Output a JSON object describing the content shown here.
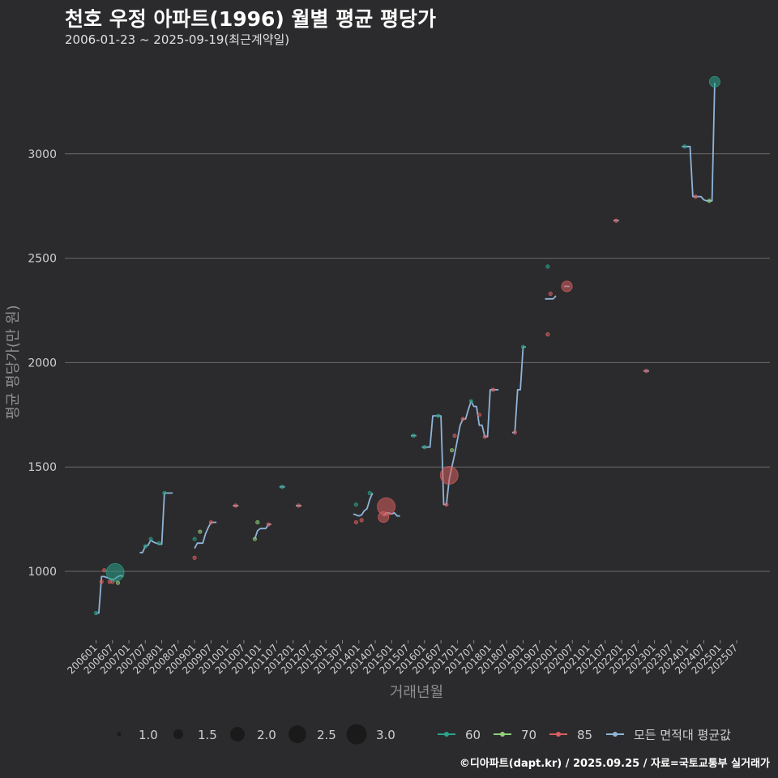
{
  "title": "천호 우정 아파트(1996) 월별 평균 평당가",
  "subtitle": "2006-01-23 ~ 2025-09-19(최근계약일)",
  "credit": "©디아파트(dapt.kr) / 2025.09.25 / 자료=국토교통부 실거래가",
  "colors": {
    "background": "#2b2b2d",
    "grid": "#6a6a6a",
    "avg_line": "#8fb4d8",
    "s60": "#2aa38a",
    "s70": "#8fd07a",
    "s85": "#d95f5f"
  },
  "chart_data": {
    "type": "line",
    "xlabel": "거래년월",
    "ylabel": "평균 평당가(만 원)",
    "ylim": [
      790,
      3380
    ],
    "y_ticks": [
      1000,
      1500,
      2000,
      2500,
      3000
    ],
    "x_ticks": [
      "200601",
      "200607",
      "200701",
      "200707",
      "200801",
      "200807",
      "200901",
      "200907",
      "201001",
      "201007",
      "201101",
      "201107",
      "201201",
      "201207",
      "201301",
      "201307",
      "201401",
      "201407",
      "201501",
      "201507",
      "201601",
      "201607",
      "201701",
      "201707",
      "201801",
      "201807",
      "201901",
      "201907",
      "202001",
      "202007",
      "202101",
      "202107",
      "202201",
      "202207",
      "202301",
      "202307",
      "202401",
      "202407",
      "202501",
      "202507"
    ],
    "grid": true,
    "size_legend": {
      "values": [
        "1.0",
        "1.5",
        "2.0",
        "2.5",
        "3.0"
      ]
    },
    "color_legend": [
      {
        "name": "60",
        "key": "s60"
      },
      {
        "name": "70",
        "key": "s70"
      },
      {
        "name": "85",
        "key": "s85"
      },
      {
        "name": "모든 면적대 평균값",
        "key": "avg_line"
      }
    ],
    "avg_series": [
      [
        [
          "200601",
          800
        ],
        [
          "200602",
          800
        ],
        [
          "200603",
          975
        ],
        [
          "200604",
          975
        ],
        [
          "200605",
          970
        ],
        [
          "200606",
          965
        ],
        [
          "200607",
          960
        ],
        [
          "200608",
          965
        ],
        [
          "200609",
          975
        ],
        [
          "200610",
          980
        ],
        [
          "200611",
          975
        ]
      ],
      [
        [
          "200705",
          1090
        ],
        [
          "200706",
          1090
        ],
        [
          "200707",
          1120
        ],
        [
          "200708",
          1125
        ],
        [
          "200709",
          1150
        ],
        [
          "200710",
          1140
        ],
        [
          "200711",
          1135
        ],
        [
          "200712",
          1130
        ],
        [
          "200801",
          1130
        ],
        [
          "200802",
          1375
        ],
        [
          "200803",
          1375
        ],
        [
          "200804",
          1375
        ],
        [
          "200805",
          1375
        ]
      ],
      [
        [
          "200901",
          1110
        ],
        [
          "200902",
          1135
        ],
        [
          "200903",
          1135
        ],
        [
          "200904",
          1135
        ],
        [
          "200905",
          1180
        ],
        [
          "200906",
          1210
        ],
        [
          "200907",
          1235
        ],
        [
          "200908",
          1235
        ],
        [
          "200909",
          1235
        ]
      ],
      [
        [
          "201003",
          1315
        ],
        [
          "201004",
          1315
        ],
        [
          "201005",
          1315
        ]
      ],
      [
        [
          "201011",
          1155
        ],
        [
          "201012",
          1195
        ],
        [
          "201101",
          1205
        ],
        [
          "201102",
          1205
        ],
        [
          "201103",
          1205
        ],
        [
          "201104",
          1225
        ],
        [
          "201105",
          1225
        ]
      ],
      [
        [
          "201108",
          1405
        ],
        [
          "201109",
          1405
        ],
        [
          "201110",
          1405
        ]
      ],
      [
        [
          "201202",
          1315
        ],
        [
          "201203",
          1315
        ],
        [
          "201204",
          1315
        ]
      ],
      [
        [
          "201311",
          1275
        ],
        [
          "201312",
          1270
        ],
        [
          "201401",
          1265
        ],
        [
          "201402",
          1270
        ],
        [
          "201403",
          1290
        ],
        [
          "201404",
          1300
        ],
        [
          "201405",
          1345
        ],
        [
          "201406",
          1375
        ]
      ],
      [
        [
          "201410",
          1265
        ],
        [
          "201411",
          1280
        ],
        [
          "201412",
          1280
        ],
        [
          "201501",
          1275
        ],
        [
          "201502",
          1280
        ],
        [
          "201503",
          1265
        ],
        [
          "201504",
          1265
        ]
      ],
      [
        [
          "201508",
          1650
        ],
        [
          "201509",
          1650
        ],
        [
          "201510",
          1650
        ]
      ],
      [
        [
          "201512",
          1595
        ],
        [
          "201601",
          1595
        ],
        [
          "201602",
          1595
        ],
        [
          "201603",
          1595
        ],
        [
          "201604",
          1745
        ],
        [
          "201605",
          1745
        ],
        [
          "201606",
          1745
        ],
        [
          "201607",
          1745
        ],
        [
          "201608",
          1320
        ],
        [
          "201609",
          1320
        ],
        [
          "201610",
          1440
        ],
        [
          "201611",
          1500
        ],
        [
          "201612",
          1560
        ],
        [
          "201701",
          1630
        ],
        [
          "201702",
          1700
        ],
        [
          "201703",
          1730
        ],
        [
          "201704",
          1730
        ],
        [
          "201705",
          1775
        ],
        [
          "201706",
          1815
        ],
        [
          "201707",
          1790
        ],
        [
          "201708",
          1790
        ],
        [
          "201709",
          1700
        ],
        [
          "201710",
          1700
        ],
        [
          "201711",
          1645
        ],
        [
          "201712",
          1645
        ],
        [
          "201801",
          1870
        ],
        [
          "201802",
          1870
        ],
        [
          "201803",
          1870
        ],
        [
          "201804",
          1870
        ]
      ],
      [
        [
          "201809",
          1665
        ],
        [
          "201810",
          1665
        ],
        [
          "201811",
          1870
        ],
        [
          "201812",
          1870
        ],
        [
          "201901",
          2075
        ],
        [
          "201902",
          2075
        ]
      ],
      [
        [
          "201909",
          2305
        ],
        [
          "201910",
          2305
        ],
        [
          "201911",
          2305
        ],
        [
          "201912",
          2305
        ],
        [
          "202001",
          2320
        ]
      ],
      [
        [
          "202004",
          2365
        ],
        [
          "202005",
          2365
        ],
        [
          "202006",
          2365
        ]
      ],
      [
        [
          "202110",
          2680
        ],
        [
          "202111",
          2680
        ],
        [
          "202112",
          2680
        ]
      ],
      [
        [
          "202209",
          1960
        ],
        [
          "202210",
          1960
        ],
        [
          "202211",
          1960
        ]
      ],
      [
        [
          "202311",
          3035
        ],
        [
          "202312",
          3035
        ],
        [
          "202401",
          3035
        ],
        [
          "202402",
          3035
        ],
        [
          "202403",
          2795
        ],
        [
          "202404",
          2795
        ],
        [
          "202405",
          2795
        ],
        [
          "202406",
          2795
        ],
        [
          "202407",
          2780
        ],
        [
          "202408",
          2775
        ],
        [
          "202409",
          2775
        ],
        [
          "202410",
          2775
        ],
        [
          "202411",
          3340
        ]
      ]
    ],
    "points": [
      {
        "x": "200601",
        "y": 800,
        "s": 1,
        "g": "s60"
      },
      {
        "x": "200603",
        "y": 950,
        "s": 1,
        "g": "s85"
      },
      {
        "x": "200604",
        "y": 1005,
        "s": 1,
        "g": "s85"
      },
      {
        "x": "200606",
        "y": 950,
        "s": 1,
        "g": "s85"
      },
      {
        "x": "200607",
        "y": 950,
        "s": 1,
        "g": "s85"
      },
      {
        "x": "200608",
        "y": 995,
        "s": 3,
        "g": "s60"
      },
      {
        "x": "200609",
        "y": 945,
        "s": 1,
        "g": "s70"
      },
      {
        "x": "200707",
        "y": 1120,
        "s": 1,
        "g": "s60"
      },
      {
        "x": "200709",
        "y": 1155,
        "s": 1,
        "g": "s60"
      },
      {
        "x": "200712",
        "y": 1135,
        "s": 1,
        "g": "s60"
      },
      {
        "x": "200802",
        "y": 1375,
        "s": 1,
        "g": "s60"
      },
      {
        "x": "200901",
        "y": 1155,
        "s": 1,
        "g": "s60"
      },
      {
        "x": "200901",
        "y": 1065,
        "s": 1,
        "g": "s85"
      },
      {
        "x": "200903",
        "y": 1190,
        "s": 1,
        "g": "s70"
      },
      {
        "x": "200907",
        "y": 1235,
        "s": 1,
        "g": "s85"
      },
      {
        "x": "201004",
        "y": 1315,
        "s": 1,
        "g": "s85"
      },
      {
        "x": "201011",
        "y": 1155,
        "s": 1,
        "g": "s70"
      },
      {
        "x": "201012",
        "y": 1235,
        "s": 1,
        "g": "s70"
      },
      {
        "x": "201104",
        "y": 1225,
        "s": 1,
        "g": "s85"
      },
      {
        "x": "201109",
        "y": 1405,
        "s": 1,
        "g": "s60"
      },
      {
        "x": "201203",
        "y": 1315,
        "s": 1,
        "g": "s85"
      },
      {
        "x": "201312",
        "y": 1235,
        "s": 1,
        "g": "s85"
      },
      {
        "x": "201312",
        "y": 1320,
        "s": 1,
        "g": "s60"
      },
      {
        "x": "201402",
        "y": 1245,
        "s": 1,
        "g": "s85"
      },
      {
        "x": "201405",
        "y": 1375,
        "s": 1,
        "g": "s60"
      },
      {
        "x": "201410",
        "y": 1260,
        "s": 2,
        "g": "s85"
      },
      {
        "x": "201411",
        "y": 1310,
        "s": 3,
        "g": "s85"
      },
      {
        "x": "201509",
        "y": 1650,
        "s": 1,
        "g": "s60"
      },
      {
        "x": "201601",
        "y": 1595,
        "s": 1,
        "g": "s60"
      },
      {
        "x": "201606",
        "y": 1745,
        "s": 1,
        "g": "s60"
      },
      {
        "x": "201609",
        "y": 1320,
        "s": 1,
        "g": "s85"
      },
      {
        "x": "201610",
        "y": 1460,
        "s": 3,
        "g": "s85"
      },
      {
        "x": "201611",
        "y": 1580,
        "s": 1,
        "g": "s70"
      },
      {
        "x": "201612",
        "y": 1650,
        "s": 1,
        "g": "s85"
      },
      {
        "x": "201703",
        "y": 1730,
        "s": 1,
        "g": "s85"
      },
      {
        "x": "201706",
        "y": 1815,
        "s": 1,
        "g": "s60"
      },
      {
        "x": "201709",
        "y": 1750,
        "s": 1,
        "g": "s85"
      },
      {
        "x": "201711",
        "y": 1645,
        "s": 1,
        "g": "s85"
      },
      {
        "x": "201802",
        "y": 1870,
        "s": 1,
        "g": "s85"
      },
      {
        "x": "201810",
        "y": 1665,
        "s": 1,
        "g": "s85"
      },
      {
        "x": "201901",
        "y": 2075,
        "s": 1,
        "g": "s60"
      },
      {
        "x": "201910",
        "y": 2460,
        "s": 1,
        "g": "s60"
      },
      {
        "x": "201910",
        "y": 2135,
        "s": 1,
        "g": "s85"
      },
      {
        "x": "201911",
        "y": 2330,
        "s": 1,
        "g": "s85"
      },
      {
        "x": "202005",
        "y": 2365,
        "s": 2,
        "g": "s85"
      },
      {
        "x": "202111",
        "y": 2680,
        "s": 1,
        "g": "s85"
      },
      {
        "x": "202210",
        "y": 1960,
        "s": 1,
        "g": "s85"
      },
      {
        "x": "202312",
        "y": 3035,
        "s": 1,
        "g": "s60"
      },
      {
        "x": "202404",
        "y": 2795,
        "s": 1,
        "g": "s85"
      },
      {
        "x": "202409",
        "y": 2775,
        "s": 1,
        "g": "s70"
      },
      {
        "x": "202411",
        "y": 3345,
        "s": 2,
        "g": "s60"
      }
    ]
  }
}
